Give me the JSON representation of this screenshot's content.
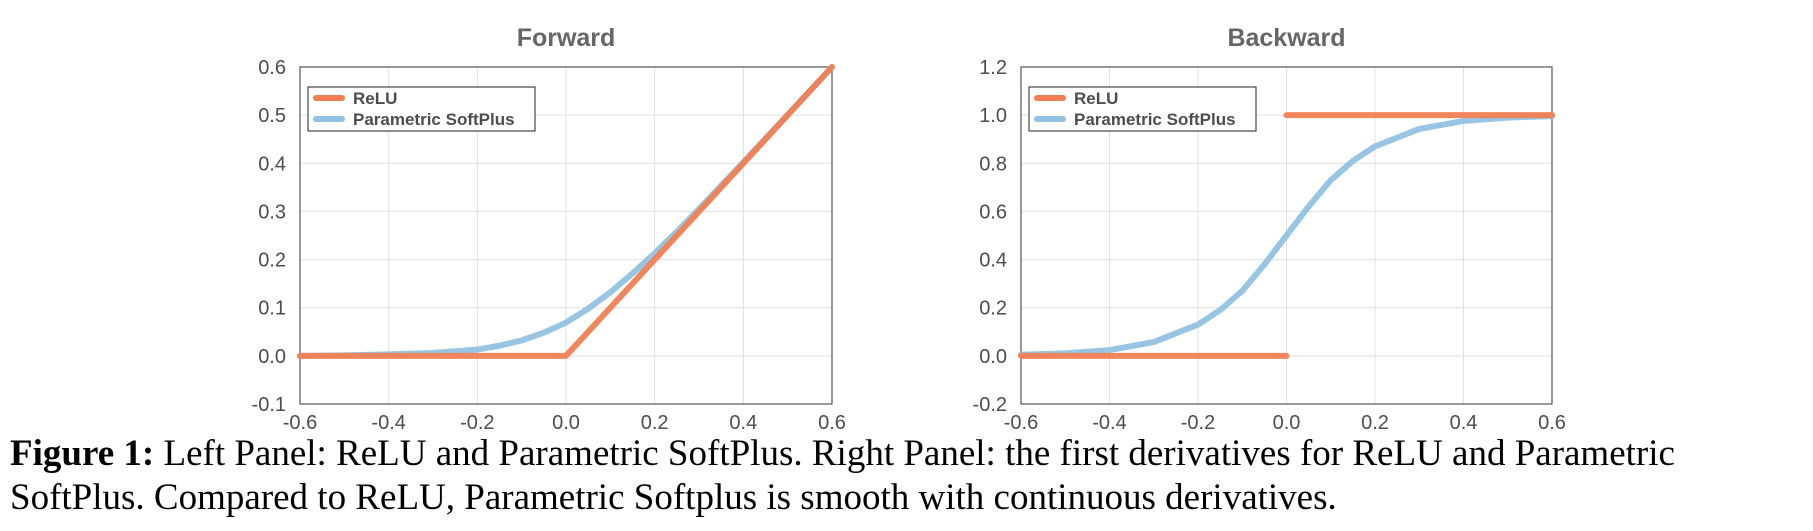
{
  "chart_data": [
    {
      "type": "line",
      "title": "Forward",
      "xlabel": "",
      "ylabel": "",
      "xlim": [
        -0.6,
        0.6
      ],
      "ylim": [
        -0.1,
        0.6
      ],
      "xticks": [
        "-0.6",
        "-0.4",
        "-0.2",
        "0.0",
        "0.2",
        "0.4",
        "0.6"
      ],
      "yticks": [
        "-0.1",
        "0.0",
        "0.1",
        "0.2",
        "0.3",
        "0.4",
        "0.5",
        "0.6"
      ],
      "grid": true,
      "legend_position": "top-left",
      "series": [
        {
          "name": "ReLU",
          "color": "#F07F53",
          "segments": [
            [
              [
                -0.6,
                0.0
              ],
              [
                0.0,
                0.0
              ],
              [
                0.6,
                0.6
              ]
            ]
          ]
        },
        {
          "name": "Parametric SoftPlus",
          "color": "#92C2E3",
          "segments": [
            [
              [
                -0.6,
                0.0
              ],
              [
                -0.5,
                0.001
              ],
              [
                -0.4,
                0.003
              ],
              [
                -0.3,
                0.006
              ],
              [
                -0.2,
                0.013
              ],
              [
                -0.15,
                0.021
              ],
              [
                -0.1,
                0.032
              ],
              [
                -0.05,
                0.048
              ],
              [
                0.0,
                0.069
              ],
              [
                0.05,
                0.098
              ],
              [
                0.1,
                0.132
              ],
              [
                0.15,
                0.171
              ],
              [
                0.2,
                0.213
              ],
              [
                0.25,
                0.258
              ],
              [
                0.3,
                0.305
              ],
              [
                0.4,
                0.402
              ],
              [
                0.5,
                0.501
              ],
              [
                0.6,
                0.6
              ]
            ]
          ]
        }
      ]
    },
    {
      "type": "line",
      "title": "Backward",
      "xlabel": "",
      "ylabel": "",
      "xlim": [
        -0.6,
        0.6
      ],
      "ylim": [
        -0.2,
        1.2
      ],
      "xticks": [
        "-0.6",
        "-0.4",
        "-0.2",
        "0.0",
        "0.2",
        "0.4",
        "0.6"
      ],
      "yticks": [
        "-0.2",
        "0.0",
        "0.2",
        "0.4",
        "0.6",
        "0.8",
        "1.0",
        "1.2"
      ],
      "grid": true,
      "legend_position": "top-left",
      "series": [
        {
          "name": "ReLU",
          "color": "#F07F53",
          "segments": [
            [
              [
                -0.6,
                0.0
              ],
              [
                0.0,
                0.0
              ]
            ],
            [
              [
                0.0,
                1.0
              ],
              [
                0.6,
                1.0
              ]
            ]
          ]
        },
        {
          "name": "Parametric SoftPlus",
          "color": "#92C2E3",
          "segments": [
            [
              [
                -0.6,
                0.005
              ],
              [
                -0.5,
                0.01
              ],
              [
                -0.4,
                0.024
              ],
              [
                -0.3,
                0.057
              ],
              [
                -0.2,
                0.13
              ],
              [
                -0.15,
                0.19
              ],
              [
                -0.1,
                0.27
              ],
              [
                -0.05,
                0.38
              ],
              [
                0.0,
                0.5
              ],
              [
                0.05,
                0.62
              ],
              [
                0.1,
                0.73
              ],
              [
                0.15,
                0.81
              ],
              [
                0.2,
                0.87
              ],
              [
                0.3,
                0.943
              ],
              [
                0.4,
                0.976
              ],
              [
                0.5,
                0.99
              ],
              [
                0.6,
                0.996
              ]
            ]
          ]
        }
      ]
    }
  ],
  "caption": {
    "label": "Figure 1:",
    "text": " Left Panel: ReLU and Parametric SoftPlus. Right Panel: the first derivatives for ReLU and Parametric SoftPlus. Compared to ReLU, Parametric Softplus is smooth with continuous derivatives."
  }
}
